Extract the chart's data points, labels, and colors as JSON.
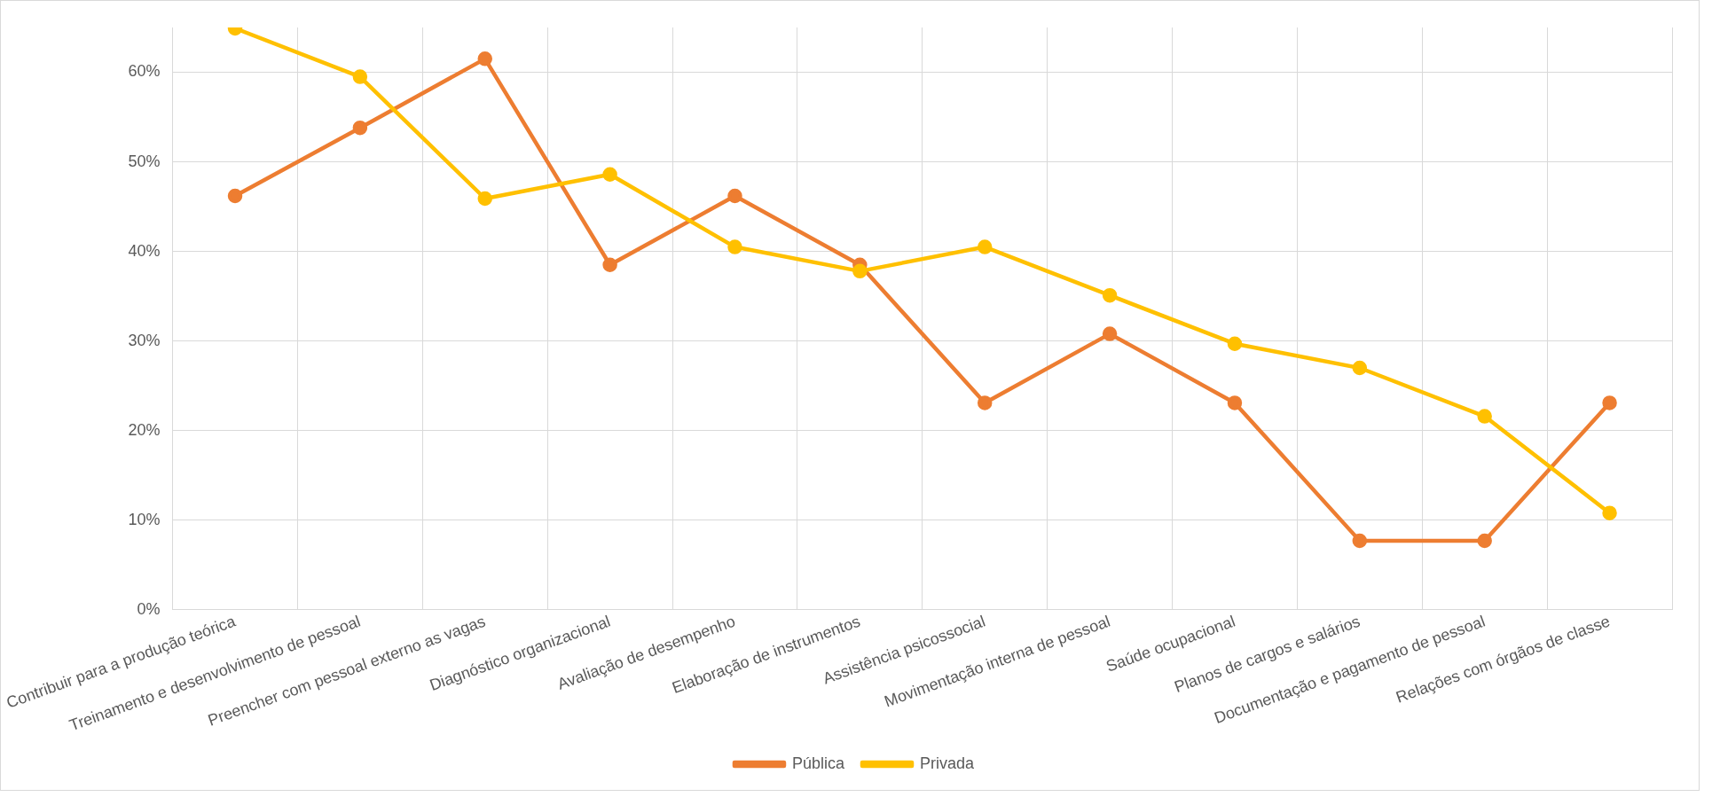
{
  "chart_data": {
    "type": "line",
    "categories": [
      "Contribuir para a produção teórica",
      "Treinamento e desenvolvimento de pessoal",
      "Preencher com pessoal externo as vagas",
      "Diagnóstico organizacional",
      "Avaliação de desempenho",
      "Elaboração de instrumentos",
      "Assistência psicossocial",
      "Movimentação interna de pessoal",
      "Saúde ocupacional",
      "Planos de cargos e salários",
      "Documentação e pagamento de pessoal",
      "Relações com órgãos de classe"
    ],
    "series": [
      {
        "name": "Pública",
        "color": "#ed7d31",
        "values": [
          46.2,
          53.8,
          61.5,
          38.5,
          46.2,
          38.5,
          23.1,
          30.8,
          23.1,
          7.7,
          7.7,
          23.1
        ]
      },
      {
        "name": "Privada",
        "color": "#ffc000",
        "values": [
          64.9,
          59.5,
          45.9,
          48.6,
          40.5,
          37.8,
          40.5,
          35.1,
          29.7,
          27.0,
          21.6,
          10.8
        ]
      }
    ],
    "ylim": [
      0,
      65
    ],
    "yticks": [
      {
        "value": 0,
        "label": "0%"
      },
      {
        "value": 10,
        "label": "10%"
      },
      {
        "value": 20,
        "label": "20%"
      },
      {
        "value": 30,
        "label": "30%"
      },
      {
        "value": 40,
        "label": "40%"
      },
      {
        "value": 50,
        "label": "50%"
      },
      {
        "value": 60,
        "label": "60%"
      }
    ],
    "grid": true,
    "legend": "bottom",
    "marker": "circle",
    "line_style": "solid"
  }
}
